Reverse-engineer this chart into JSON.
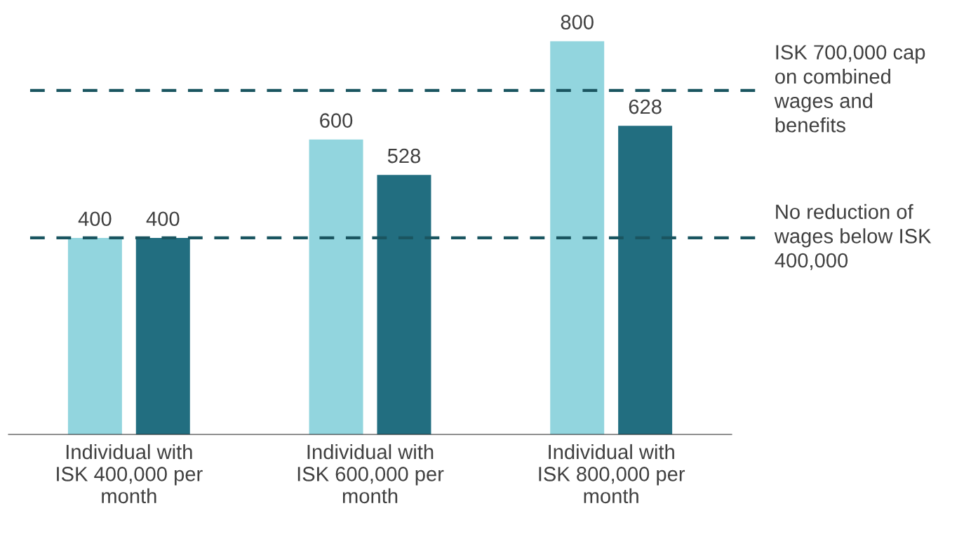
{
  "chart_data": {
    "type": "bar",
    "categories": [
      "Individual with\nISK 400,000 per\nmonth",
      "Individual with\nISK 600,000 per\nmonth",
      "Individual with\nISK 800,000 per\nmonth"
    ],
    "series": [
      {
        "color": "#92d5de",
        "values": [
          400,
          600,
          800
        ]
      },
      {
        "color": "#226e80",
        "values": [
          400,
          528,
          628
        ]
      }
    ],
    "data_labels": true,
    "ref_lines": [
      {
        "axis": "y",
        "value": 700,
        "label": "ISK 700,000 cap\non combined\nwages and\nbenefits",
        "color": "#1a5560",
        "line_style": "dashed"
      },
      {
        "axis": "y",
        "value": 400,
        "label": "No reduction of\nwages below ISK\n400,000",
        "color": "#1a5560",
        "line_style": "dashed"
      }
    ],
    "grid": false,
    "legend": false
  }
}
